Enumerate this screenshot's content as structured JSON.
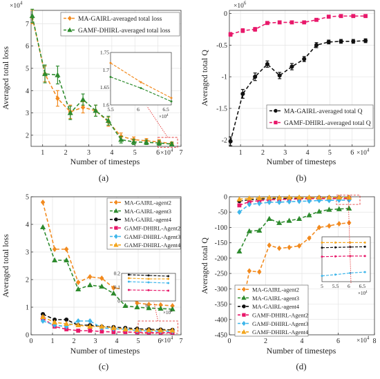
{
  "chart_data": [
    {
      "type": "line",
      "panel_label": "(a)",
      "exponent_x": "×10",
      "exponent_x_power": "4",
      "exponent_y": "×10",
      "exponent_y_power": "4",
      "xlabel": "Number of timesteps",
      "ylabel": "Averaged total loss",
      "xlim": [
        0.5,
        7
      ],
      "ylim": [
        1.5,
        7.6
      ],
      "xticks": [
        1,
        2,
        3,
        4,
        5,
        6,
        7
      ],
      "yticks": [
        2,
        3,
        4,
        5,
        6,
        7
      ],
      "legend_position": "top-right",
      "series": [
        {
          "name": "MA-GAIRL-averaged total loss",
          "color": "#f28a1e",
          "marker": "diamond",
          "x": [
            0.55,
            1.1,
            1.65,
            2.2,
            2.75,
            3.3,
            3.85,
            4.4,
            4.95,
            5.5,
            6.05,
            6.6
          ],
          "y": [
            7.3,
            4.75,
            3.65,
            3.05,
            3.25,
            3.1,
            2.6,
            1.95,
            1.8,
            1.75,
            1.7,
            1.62
          ],
          "err": [
            0.3,
            0.35,
            0.35,
            0.3,
            0.25,
            0.25,
            0.2,
            0.15,
            0.12,
            0.1,
            0.1,
            0.08
          ]
        },
        {
          "name": "GAMF-DHIRL-averaged total loss",
          "color": "#2e8b2e",
          "marker": "triangle",
          "x": [
            0.55,
            1.1,
            1.65,
            2.2,
            2.75,
            3.3,
            3.85,
            4.4,
            4.95,
            5.5,
            6.05,
            6.6
          ],
          "y": [
            7.35,
            4.75,
            4.7,
            3.0,
            3.6,
            3.1,
            2.65,
            1.8,
            1.7,
            1.68,
            1.65,
            1.6
          ],
          "err": [
            0.3,
            0.4,
            0.4,
            0.3,
            0.25,
            0.25,
            0.2,
            0.15,
            0.12,
            0.1,
            0.1,
            0.08
          ]
        }
      ],
      "inset": {
        "exponent": "×10",
        "exponent_power": "4",
        "xlim": [
          5.5,
          6.6
        ],
        "ylim": [
          1.6,
          1.75
        ],
        "xticks": [
          5.5,
          6,
          6.5
        ],
        "yticks": [
          1.6,
          1.65,
          1.7,
          1.75
        ],
        "series": [
          {
            "color": "#f28a1e",
            "x": [
              5.5,
              6.05,
              6.6
            ],
            "y": [
              1.72,
              1.665,
              1.62
            ]
          },
          {
            "color": "#2e8b2e",
            "x": [
              5.5,
              6.05,
              6.6
            ],
            "y": [
              1.68,
              1.648,
              1.61
            ]
          }
        ]
      }
    },
    {
      "type": "line",
      "panel_label": "(b)",
      "exponent_x": "×10",
      "exponent_x_power": "4",
      "exponent_y": "×10",
      "exponent_y_power": "6",
      "xlabel": "Number of timesteps",
      "ylabel": "Averaged total Q",
      "xlim": [
        0.5,
        7
      ],
      "ylim": [
        -2.1,
        0.05
      ],
      "xticks": [
        1,
        2,
        3,
        4,
        5,
        6
      ],
      "yticks": [
        -2,
        -1.5,
        -1,
        -0.5,
        0
      ],
      "legend_position": "bottom-right",
      "series": [
        {
          "name": "MA-GAIRL-averaged total Q",
          "color": "#111111",
          "marker": "circle",
          "x": [
            0.55,
            1.1,
            1.65,
            2.2,
            2.75,
            3.3,
            3.85,
            4.4,
            4.95,
            5.5,
            6.05,
            6.6
          ],
          "y": [
            -2.02,
            -1.27,
            -1.0,
            -0.8,
            -0.98,
            -0.84,
            -0.72,
            -0.5,
            -0.45,
            -0.44,
            -0.44,
            -0.43
          ],
          "err": [
            0.07,
            0.07,
            0.06,
            0.05,
            0.05,
            0.05,
            0.04,
            0.04,
            0.03,
            0.03,
            0.03,
            0.03
          ]
        },
        {
          "name": "GAMF-DHIRL-averaged total Q",
          "color": "#e8186a",
          "marker": "square",
          "x": [
            0.55,
            1.1,
            1.65,
            2.2,
            2.75,
            3.3,
            3.85,
            4.4,
            4.95,
            5.5,
            6.05,
            6.6
          ],
          "y": [
            -0.33,
            -0.27,
            -0.25,
            -0.15,
            -0.14,
            -0.14,
            -0.14,
            -0.1,
            -0.05,
            -0.04,
            -0.04,
            -0.04
          ],
          "err": [
            0.03,
            0.03,
            0.03,
            0.02,
            0.02,
            0.02,
            0.02,
            0.02,
            0.02,
            0.02,
            0.02,
            0.02
          ]
        }
      ]
    },
    {
      "type": "line",
      "panel_label": "(c)",
      "exponent_x": "×10",
      "exponent_x_power": "4",
      "xlabel": "Number of timesteps",
      "ylabel": "Averaged total loss",
      "xlim": [
        0,
        7
      ],
      "ylim": [
        0,
        5
      ],
      "xticks": [
        0,
        1,
        2,
        3,
        4,
        5,
        6,
        7
      ],
      "yticks": [
        0,
        1,
        2,
        3,
        4,
        5
      ],
      "legend_position": "top-right",
      "series": [
        {
          "name": "MA-GAIRL-agent2",
          "color": "#f28a1e",
          "marker": "diamond",
          "x": [
            0.55,
            1.1,
            1.65,
            2.2,
            2.75,
            3.3,
            3.85,
            4.4,
            4.95,
            5.5,
            6.05,
            6.6
          ],
          "y": [
            4.8,
            3.1,
            3.1,
            1.9,
            2.1,
            2.05,
            1.7,
            1.65,
            1.15,
            1.1,
            1.08,
            1.05
          ]
        },
        {
          "name": "MA-GAIRL-agent3",
          "color": "#2e8b2e",
          "marker": "triangle",
          "x": [
            0.55,
            1.1,
            1.65,
            2.2,
            2.75,
            3.3,
            3.85,
            4.4,
            4.95,
            5.5,
            6.05,
            6.6
          ],
          "y": [
            3.9,
            2.7,
            2.7,
            1.65,
            1.8,
            1.75,
            1.5,
            1.05,
            1.0,
            0.97,
            0.95,
            0.93
          ]
        },
        {
          "name": "MA-GAIRL-agent4",
          "color": "#111111",
          "marker": "circle",
          "x": [
            0.55,
            1.1,
            1.65,
            2.2,
            2.75,
            3.3,
            3.85,
            4.4,
            4.95,
            5.5,
            6.05,
            6.6
          ],
          "y": [
            0.75,
            0.55,
            0.55,
            0.35,
            0.35,
            0.3,
            0.28,
            0.25,
            0.22,
            0.2,
            0.19,
            0.18
          ]
        },
        {
          "name": "GAMF-DHIRL-Agent2",
          "color": "#e8186a",
          "marker": "square",
          "x": [
            0.55,
            1.1,
            1.65,
            2.2,
            2.75,
            3.3,
            3.85,
            4.4,
            4.95,
            5.5,
            6.05,
            6.6
          ],
          "y": [
            0.6,
            0.3,
            0.2,
            0.15,
            0.15,
            0.12,
            0.1,
            0.1,
            0.09,
            0.08,
            0.08,
            0.08
          ]
        },
        {
          "name": "GAMF-DHIRL-Agent3",
          "color": "#3fb6ea",
          "marker": "diamond",
          "x": [
            0.55,
            1.1,
            1.65,
            2.2,
            2.75,
            3.3,
            3.85,
            4.4,
            4.95,
            5.5,
            6.05,
            6.6
          ],
          "y": [
            0.5,
            0.35,
            0.3,
            0.5,
            0.5,
            0.25,
            0.22,
            0.2,
            0.15,
            0.14,
            0.13,
            0.13
          ]
        },
        {
          "name": "GAMF-DHIRL-Agent4",
          "color": "#f2a51e",
          "marker": "triangle",
          "x": [
            0.55,
            1.1,
            1.65,
            2.2,
            2.75,
            3.3,
            3.85,
            4.4,
            4.95,
            5.5,
            6.05,
            6.6
          ],
          "y": [
            0.65,
            0.45,
            0.4,
            0.35,
            0.3,
            0.3,
            0.25,
            0.2,
            0.18,
            0.17,
            0.16,
            0.16
          ]
        }
      ],
      "inset": {
        "exponent": "×10",
        "exponent_power": "4",
        "xlim": [
          5.3,
          6.8
        ],
        "ylim": [
          0,
          0.2
        ],
        "xticks": [
          6
        ],
        "yticks": [
          0,
          0.1,
          0.2
        ],
        "series": [
          {
            "color": "#111111",
            "x": [
              5.5,
              6.05,
              6.6
            ],
            "y": [
              0.19,
              0.185,
              0.18
            ]
          },
          {
            "color": "#f2a51e",
            "x": [
              5.5,
              6.05,
              6.6
            ],
            "y": [
              0.165,
              0.16,
              0.16
            ]
          },
          {
            "color": "#3fb6ea",
            "x": [
              5.5,
              6.05,
              6.6
            ],
            "y": [
              0.14,
              0.135,
              0.13
            ]
          },
          {
            "color": "#e8186a",
            "x": [
              5.5,
              6.05,
              6.6
            ],
            "y": [
              0.08,
              0.078,
              0.075
            ]
          }
        ]
      }
    },
    {
      "type": "line",
      "panel_label": "(d)",
      "exponent_x": "×10",
      "exponent_x_power": "4",
      "xlabel": "Number of timesteps",
      "ylabel": "Averaged total Q",
      "xlim": [
        0,
        8
      ],
      "ylim": [
        -450,
        0
      ],
      "xticks": [
        0,
        2,
        4,
        6,
        8
      ],
      "yticks": [
        -450,
        -400,
        -350,
        -300,
        -250,
        -200,
        -150,
        -100,
        -50,
        0
      ],
      "legend_position": "bottom-left",
      "series": [
        {
          "name": "MA-GAIRL-agent2",
          "color": "#f28a1e",
          "marker": "diamond",
          "x": [
            0.55,
            1.1,
            1.65,
            2.2,
            2.75,
            3.3,
            3.85,
            4.4,
            4.95,
            5.5,
            6.05,
            6.6
          ],
          "y": [
            -408,
            -242,
            -245,
            -158,
            -168,
            -165,
            -160,
            -135,
            -100,
            -95,
            -88,
            -85
          ]
        },
        {
          "name": "MA-GAIRL-agent3",
          "color": "#2e8b2e",
          "marker": "triangle",
          "x": [
            0.55,
            1.1,
            1.65,
            2.2,
            2.75,
            3.3,
            3.85,
            4.4,
            4.95,
            5.5,
            6.05,
            6.6
          ],
          "y": [
            -178,
            -112,
            -110,
            -72,
            -85,
            -78,
            -72,
            -60,
            -48,
            -42,
            -40,
            -38
          ]
        },
        {
          "name": "MA-GAIRL-agent4",
          "color": "#111111",
          "marker": "circle",
          "x": [
            0.55,
            1.1,
            1.65,
            2.2,
            2.75,
            3.3,
            3.85,
            4.4,
            4.95,
            5.5,
            6.05,
            6.6
          ],
          "y": [
            -14,
            -10,
            -8,
            -6,
            -5,
            -5,
            -4,
            -4,
            -3,
            -3,
            -3,
            -3
          ]
        },
        {
          "name": "GAMF-DHIRL-Agent2",
          "color": "#e8186a",
          "marker": "square",
          "x": [
            0.55,
            1.1,
            1.65,
            2.2,
            2.75,
            3.3,
            3.85,
            4.4,
            4.95,
            5.5,
            6.05,
            6.6
          ],
          "y": [
            -28,
            -16,
            -13,
            -10,
            -9,
            -8,
            -7,
            -6,
            -6,
            -6,
            -6,
            -6
          ]
        },
        {
          "name": "GAMF-DHIRL-Agent3",
          "color": "#3fb6ea",
          "marker": "diamond",
          "x": [
            0.55,
            1.1,
            1.65,
            2.2,
            2.75,
            3.3,
            3.85,
            4.4,
            4.95,
            5.5,
            6.05,
            6.6
          ],
          "y": [
            -50,
            -25,
            -22,
            -18,
            -18,
            -16,
            -15,
            -14,
            -12,
            -12,
            -11,
            -11
          ]
        },
        {
          "name": "GAMF-DHIRL-Agent4",
          "color": "#f2a51e",
          "marker": "triangle",
          "x": [
            0.55,
            1.1,
            1.65,
            2.2,
            2.75,
            3.3,
            3.85,
            4.4,
            4.95,
            5.5,
            6.05,
            6.6
          ],
          "y": [
            -8,
            -5,
            -4,
            -3,
            -3,
            -2,
            -2,
            -2,
            -2,
            -2,
            -2,
            -2
          ]
        }
      ],
      "inset": {
        "exponent": "×10",
        "exponent_power": "4",
        "xlim": [
          5,
          6.8
        ],
        "ylim": [
          -14,
          0
        ],
        "xticks": [
          5,
          5.5,
          6,
          6.5
        ],
        "yticks": [],
        "series": [
          {
            "color": "#f2a51e",
            "x": [
              5.0,
              5.5,
              6.05,
              6.6
            ],
            "y": [
              -1.8,
              -1.8,
              -1.8,
              -1.8
            ]
          },
          {
            "color": "#111111",
            "x": [
              5.0,
              5.5,
              6.05,
              6.6
            ],
            "y": [
              -3.4,
              -3.3,
              -3.2,
              -3.1
            ]
          },
          {
            "color": "#e8186a",
            "x": [
              5.0,
              5.5,
              6.05,
              6.6
            ],
            "y": [
              -6.2,
              -6.1,
              -6.0,
              -6.0
            ]
          },
          {
            "color": "#3fb6ea",
            "x": [
              5.0,
              5.5,
              6.05,
              6.6
            ],
            "y": [
              -12.2,
              -11.8,
              -11.3,
              -11.0
            ]
          }
        ]
      }
    }
  ]
}
